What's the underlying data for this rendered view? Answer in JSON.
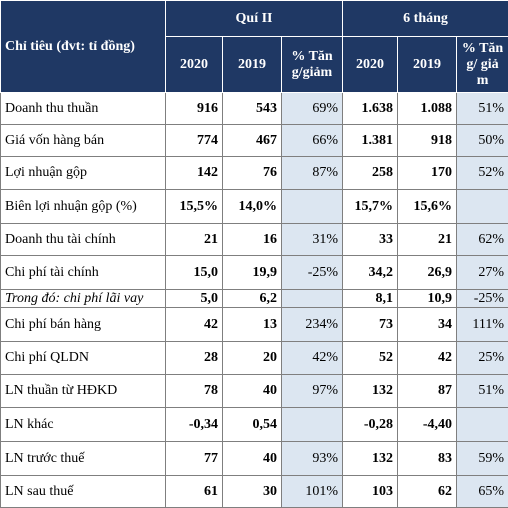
{
  "table": {
    "header": {
      "label": "Chỉ tiêu (đvt: tỉ đồng)",
      "groups": [
        "Quí II",
        "6 tháng"
      ],
      "columns": [
        "2020",
        "2019",
        "% Tăng/giảm",
        "2020",
        "2019",
        "% Tăng/ giảm"
      ]
    },
    "rows": [
      [
        "Doanh thu thuần",
        "916",
        "543",
        "69%",
        "1.638",
        "1.088",
        "51%"
      ],
      [
        "Giá vốn hàng bán",
        "774",
        "467",
        "66%",
        "1.381",
        "918",
        "50%"
      ],
      [
        "Lợi nhuận gộp",
        "142",
        "76",
        "87%",
        "258",
        "170",
        "52%"
      ],
      [
        "Biên lợi nhuận gộp (%)",
        "15,5%",
        "14,0%",
        null,
        "15,7%",
        "15,6%",
        null
      ],
      [
        "Doanh thu tài chính",
        "21",
        "16",
        "31%",
        "33",
        "21",
        "62%"
      ],
      [
        "Chi phí tài chính",
        "15,0",
        "19,9",
        "-25%",
        "34,2",
        "26,9",
        "27%"
      ],
      [
        "Trong đó: chi phí lãi vay",
        "5,0",
        "6,2",
        null,
        "8,1",
        "10,9",
        "-25%"
      ],
      [
        "Chi phí bán hàng",
        "42",
        "13",
        "234%",
        "73",
        "34",
        "111%"
      ],
      [
        "Chi phí QLDN",
        "28",
        "20",
        "42%",
        "52",
        "42",
        "25%"
      ],
      [
        "LN thuần từ HĐKD",
        "78",
        "40",
        "97%",
        "132",
        "87",
        "51%"
      ],
      [
        "LN khác",
        "-0,34",
        "0,54",
        null,
        "-0,28",
        "-4,40",
        null
      ],
      [
        "LN trước thuế",
        "77",
        "40",
        "93%",
        "132",
        "83",
        "59%"
      ],
      [
        "LN sau thuế",
        "61",
        "30",
        "101%",
        "103",
        "62",
        "65%"
      ]
    ]
  }
}
